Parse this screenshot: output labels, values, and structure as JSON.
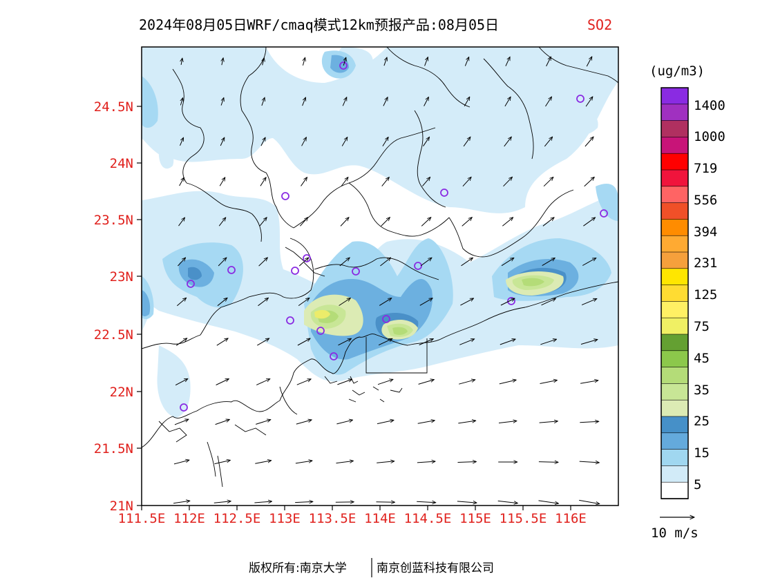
{
  "title": {
    "main": "2024年08月05日WRF/cmaq模式12km预报产品:08月05日",
    "variable": "SO2",
    "variable_color": "#e0201c"
  },
  "axes": {
    "lat_labels": [
      "24.5N",
      "24N",
      "23.5N",
      "23N",
      "22.5N",
      "22N",
      "21.5N",
      "21N"
    ],
    "lon_labels": [
      "111.5E",
      "112E",
      "112.5E",
      "113E",
      "113.5E",
      "114E",
      "114.5E",
      "115E",
      "115.5E",
      "116E"
    ],
    "label_color": "#e0201c"
  },
  "colorbar": {
    "unit": "(ug/m3)",
    "tick_labels": [
      "1400",
      "1000",
      "719",
      "556",
      "394",
      "231",
      "125",
      "75",
      "45",
      "35",
      "25",
      "15",
      "5"
    ],
    "colors_top_to_bottom": [
      "#8a2be2",
      "#a030c0",
      "#b03060",
      "#c81478",
      "#ff0000",
      "#f0143c",
      "#ff6464",
      "#f05028",
      "#ff8c00",
      "#ffaa32",
      "#f5a03c",
      "#ffe600",
      "#ffdc32",
      "#fff064",
      "#f0f064",
      "#64a032",
      "#8cc84b",
      "#b4dc78",
      "#c8e696",
      "#dcebb4",
      "#4690c8",
      "#64aadc",
      "#a0d7f0",
      "#d2ebf8",
      "#ffffff"
    ]
  },
  "fill_colors": {
    "level_5": "#d4ecf9",
    "level_10": "#a6d9f3",
    "level_15": "#6cb0e0",
    "level_20": "#4a90c8",
    "level_25": "#dcebb4",
    "level_30": "#c8e696",
    "level_35": "#b4dc78"
  },
  "wind_legend": {
    "label": "10 m/s"
  },
  "footer": {
    "copyright": "版权所有:南京大学",
    "company": "南京创蓝科技有限公司"
  }
}
